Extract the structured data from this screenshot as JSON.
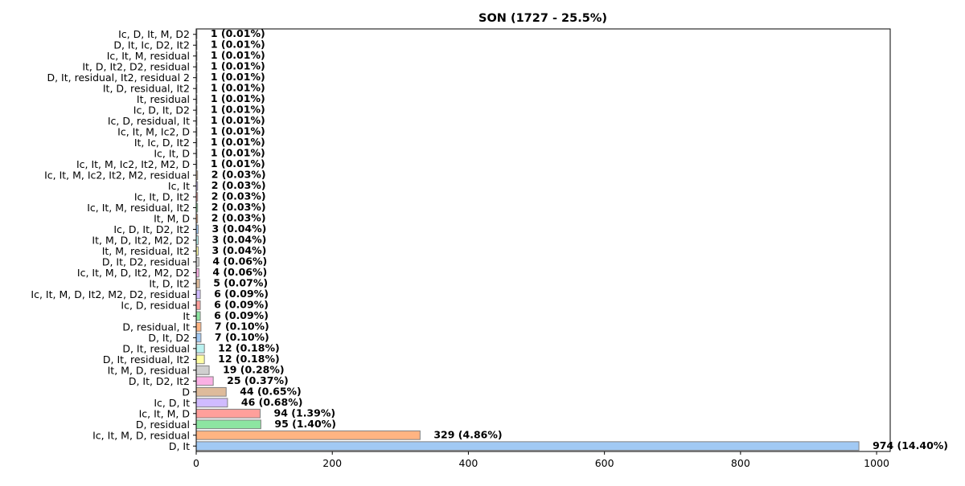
{
  "chart_data": {
    "type": "bar",
    "orientation": "horizontal",
    "title": "SON (1727 - 25.5%)",
    "xlabel": "",
    "ylabel": "",
    "xlim": [
      0,
      1020
    ],
    "x_ticks": [
      0,
      200,
      400,
      600,
      800,
      1000
    ],
    "grid": false,
    "categories": [
      "D, It",
      "Ic, It, M, D, residual",
      "D, residual",
      "Ic, It, M, D",
      "Ic, D, It",
      "D",
      "D, It, D2, It2",
      "It, M, D, residual",
      "D, It, residual, It2",
      "D, It, residual",
      "D, It, D2",
      "D, residual, It",
      "It",
      "Ic, D, residual",
      "Ic, It, M, D, It2, M2, D2, residual",
      "It, D, It2",
      "Ic, It, M, D, It2, M2, D2",
      "D, It, D2, residual",
      "It, M, residual, It2",
      "It, M, D, It2, M2, D2",
      "Ic, D, It, D2, It2",
      "It, M, D",
      "Ic, It, M, residual, It2",
      "Ic, It, D, It2",
      "Ic, It",
      "Ic, It, M, Ic2, It2, M2, residual",
      "Ic, It, M, Ic2, It2, M2, D",
      "Ic, It, D",
      "It, Ic, D, It2",
      "Ic, It, M, Ic2, D",
      "Ic, D, residual, It",
      "Ic, D, It, D2",
      "It, residual",
      "It, D, residual, It2",
      "D, It, residual, It2, residual 2",
      "It, D, It2, D2, residual",
      "Ic, It, M, residual",
      "D, It, Ic, D2, It2",
      "Ic, D, It, M, D2"
    ],
    "values": [
      974,
      329,
      95,
      94,
      46,
      44,
      25,
      19,
      12,
      12,
      7,
      7,
      6,
      6,
      6,
      5,
      4,
      4,
      3,
      3,
      3,
      2,
      2,
      2,
      2,
      2,
      1,
      1,
      1,
      1,
      1,
      1,
      1,
      1,
      1,
      1,
      1,
      1,
      1
    ],
    "value_labels": [
      "974 (14.40%)",
      "329 (4.86%)",
      "95 (1.40%)",
      "94 (1.39%)",
      "46 (0.68%)",
      "44 (0.65%)",
      "25 (0.37%)",
      "19 (0.28%)",
      "12 (0.18%)",
      "12 (0.18%)",
      "7 (0.10%)",
      "7 (0.10%)",
      "6 (0.09%)",
      "6 (0.09%)",
      "6 (0.09%)",
      "5 (0.07%)",
      "4 (0.06%)",
      "4 (0.06%)",
      "3 (0.04%)",
      "3 (0.04%)",
      "3 (0.04%)",
      "2 (0.03%)",
      "2 (0.03%)",
      "2 (0.03%)",
      "2 (0.03%)",
      "2 (0.03%)",
      "1 (0.01%)",
      "1 (0.01%)",
      "1 (0.01%)",
      "1 (0.01%)",
      "1 (0.01%)",
      "1 (0.01%)",
      "1 (0.01%)",
      "1 (0.01%)",
      "1 (0.01%)",
      "1 (0.01%)",
      "1 (0.01%)",
      "1 (0.01%)",
      "1 (0.01%)"
    ],
    "colors": [
      "#a1c9f4",
      "#ffb482",
      "#8de5a1",
      "#ff9f9b",
      "#d0bbff",
      "#debb9b",
      "#fab0e4",
      "#cfcfcf",
      "#fffea3",
      "#b9f2f0"
    ],
    "bar_edge_color": "#808080",
    "legend": "none"
  }
}
